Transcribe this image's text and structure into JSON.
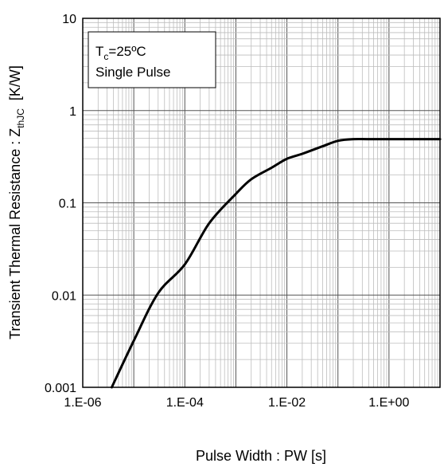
{
  "chart_data": {
    "type": "line",
    "x_scale": "log",
    "y_scale": "log",
    "xlim": [
      1e-06,
      10
    ],
    "ylim": [
      0.001,
      10
    ],
    "grid": true,
    "x_ticks": [
      {
        "value": 1e-06,
        "label": "1.E-06"
      },
      {
        "value": 0.0001,
        "label": "1.E-04"
      },
      {
        "value": 0.01,
        "label": "1.E-02"
      },
      {
        "value": 1,
        "label": "1.E+00"
      }
    ],
    "y_ticks": [
      {
        "value": 0.001,
        "label": "0.001"
      },
      {
        "value": 0.01,
        "label": "0.01"
      },
      {
        "value": 0.1,
        "label": "0.1"
      },
      {
        "value": 1,
        "label": "1"
      },
      {
        "value": 10,
        "label": "10"
      }
    ],
    "xlabel": "Pulse Width : PW   [s]",
    "ylabel": {
      "prefix": "Transient Thermal  Resistance : Z",
      "subscript": "thJC",
      "unit": "[K/W]"
    },
    "legend": {
      "placement": "top-left",
      "line1": {
        "main": "T",
        "sub": "c",
        "rest": "=25ºC"
      },
      "line2": "Single Pulse"
    },
    "series": [
      {
        "color": "#000000",
        "points": [
          {
            "x": 3.7e-06,
            "y": 0.001
          },
          {
            "x": 1e-05,
            "y": 0.0032
          },
          {
            "x": 3e-05,
            "y": 0.0105
          },
          {
            "x": 0.0001,
            "y": 0.0215
          },
          {
            "x": 0.0003,
            "y": 0.06
          },
          {
            "x": 0.001,
            "y": 0.125
          },
          {
            "x": 0.002,
            "y": 0.18
          },
          {
            "x": 0.005,
            "y": 0.24
          },
          {
            "x": 0.01,
            "y": 0.3
          },
          {
            "x": 0.02,
            "y": 0.34
          },
          {
            "x": 0.05,
            "y": 0.41
          },
          {
            "x": 0.1,
            "y": 0.47
          },
          {
            "x": 0.2,
            "y": 0.49
          },
          {
            "x": 0.5,
            "y": 0.49
          },
          {
            "x": 10,
            "y": 0.49
          }
        ]
      }
    ]
  }
}
